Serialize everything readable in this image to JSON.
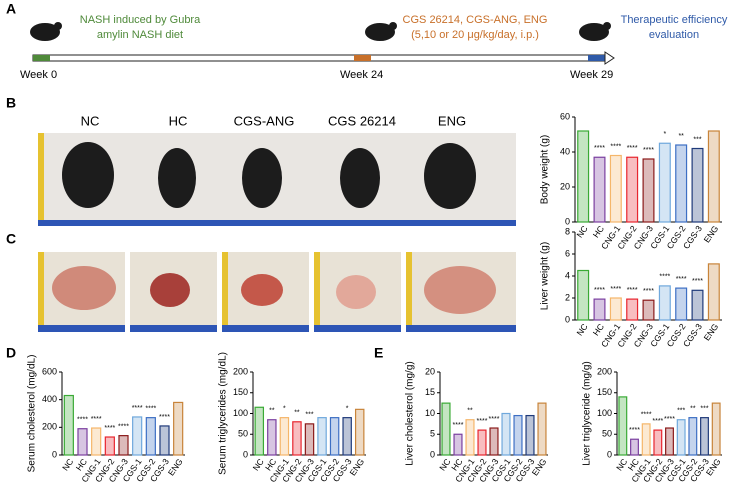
{
  "panel_labels": [
    "A",
    "B",
    "C",
    "D",
    "E"
  ],
  "timeline": {
    "diet": [
      "NASH induced by Gubra",
      "amylin NASH diet"
    ],
    "treatment": [
      "CGS 26214, CGS-ANG, ENG",
      "(5,10 or 20 μg/kg/day, i.p.)"
    ],
    "evaluation": [
      "Therapeutic efficiency",
      "evaluation"
    ],
    "weeks": [
      "Week 0",
      "Week 24",
      "Week 29"
    ]
  },
  "photo_labels": [
    "NC",
    "HC",
    "CGS-ANG",
    "CGS 26214",
    "ENG"
  ],
  "chart_data": [
    {
      "type": "bar",
      "y_label": "Body weight (g)",
      "categories": [
        "NC",
        "HC",
        "CNG-1",
        "CNG-2",
        "CNG-3",
        "CGS-1",
        "CGS-2",
        "CGS-3",
        "ENG"
      ],
      "colors": [
        "#3aaa35",
        "#7b3fa0",
        "#f5b66a",
        "#e8252e",
        "#8b1a1a",
        "#6fa8dc",
        "#3d6fc4",
        "#1f3a7a",
        "#c8843a"
      ],
      "values": [
        52,
        37,
        38,
        37,
        36,
        45,
        44,
        42,
        52
      ],
      "annotations": [
        null,
        "****",
        "****",
        "****",
        "****",
        "*",
        "**",
        "***",
        null
      ],
      "ylim": [
        0,
        60
      ],
      "yticks": [
        0,
        20,
        40,
        60
      ]
    },
    {
      "type": "bar",
      "y_label": "Liver weight (g)",
      "categories": [
        "NC",
        "HC",
        "CNG-1",
        "CNG-2",
        "CNG-3",
        "CGS-1",
        "CGS-2",
        "CGS-3",
        "ENG"
      ],
      "colors": [
        "#3aaa35",
        "#7b3fa0",
        "#f5b66a",
        "#e8252e",
        "#8b1a1a",
        "#6fa8dc",
        "#3d6fc4",
        "#1f3a7a",
        "#c8843a"
      ],
      "values": [
        4.5,
        1.9,
        2.0,
        1.9,
        1.8,
        3.1,
        2.9,
        2.7,
        5.1
      ],
      "annotations": [
        null,
        "****",
        "****",
        "****",
        "****",
        "****",
        "****",
        "****",
        null
      ],
      "ylim": [
        0,
        8
      ],
      "yticks": [
        0,
        2,
        4,
        6,
        8
      ]
    },
    {
      "type": "bar",
      "y_label": "Serum cholesterol (mg/dL)",
      "categories": [
        "NC",
        "HC",
        "CNG-1",
        "CNG-2",
        "CNG-3",
        "CGS-1",
        "CGS-2",
        "CGS-3",
        "ENG"
      ],
      "colors": [
        "#3aaa35",
        "#7b3fa0",
        "#f5b66a",
        "#e8252e",
        "#8b1a1a",
        "#6fa8dc",
        "#3d6fc4",
        "#1f3a7a",
        "#c8843a"
      ],
      "values": [
        430,
        190,
        195,
        130,
        140,
        275,
        270,
        210,
        380
      ],
      "annotations": [
        null,
        "****",
        "****",
        "****",
        "****",
        "****",
        "****",
        "****",
        null
      ],
      "ylim": [
        0,
        600
      ],
      "yticks": [
        0,
        200,
        400,
        600
      ]
    },
    {
      "type": "bar",
      "y_label": "Serum triglycerides (mg/dL)",
      "categories": [
        "NC",
        "HC",
        "CNG-1",
        "CNG-2",
        "CNG-3",
        "CGS-1",
        "CGS-2",
        "CGS-3",
        "ENG"
      ],
      "colors": [
        "#3aaa35",
        "#7b3fa0",
        "#f5b66a",
        "#e8252e",
        "#8b1a1a",
        "#6fa8dc",
        "#3d6fc4",
        "#1f3a7a",
        "#c8843a"
      ],
      "values": [
        115,
        85,
        90,
        80,
        75,
        90,
        90,
        90,
        110
      ],
      "annotations": [
        null,
        "**",
        "*",
        "**",
        "***",
        null,
        null,
        "*",
        null
      ],
      "ylim": [
        0,
        200
      ],
      "yticks": [
        0,
        50,
        100,
        150,
        200
      ]
    },
    {
      "type": "bar",
      "y_label": "Liver cholesterol (mg/g)",
      "categories": [
        "NC",
        "HC",
        "CNG-1",
        "CNG-2",
        "CNG-3",
        "CGS-1",
        "CGS-2",
        "CGS-3",
        "ENG"
      ],
      "colors": [
        "#3aaa35",
        "#7b3fa0",
        "#f5b66a",
        "#e8252e",
        "#8b1a1a",
        "#6fa8dc",
        "#3d6fc4",
        "#1f3a7a",
        "#c8843a"
      ],
      "values": [
        12.5,
        5,
        8.5,
        6,
        6.5,
        10,
        9.5,
        9.5,
        12.5
      ],
      "annotations": [
        null,
        "****",
        "**",
        "****",
        "****",
        null,
        null,
        null,
        null
      ],
      "ylim": [
        0,
        20
      ],
      "yticks": [
        0,
        5,
        10,
        15,
        20
      ]
    },
    {
      "type": "bar",
      "y_label": "Liver triglyceride (mg/g)",
      "categories": [
        "NC",
        "HC",
        "CNG-1",
        "CNG-2",
        "CNG-3",
        "CGS-1",
        "CGS-2",
        "CGS-3",
        "ENG"
      ],
      "colors": [
        "#3aaa35",
        "#7b3fa0",
        "#f5b66a",
        "#e8252e",
        "#8b1a1a",
        "#6fa8dc",
        "#3d6fc4",
        "#1f3a7a",
        "#c8843a"
      ],
      "values": [
        140,
        38,
        75,
        60,
        65,
        85,
        90,
        90,
        125
      ],
      "annotations": [
        null,
        "****",
        "****",
        "****",
        "****",
        "***",
        "**",
        "***",
        null
      ],
      "ylim": [
        0,
        200
      ],
      "yticks": [
        0,
        50,
        100,
        150,
        200
      ]
    }
  ]
}
